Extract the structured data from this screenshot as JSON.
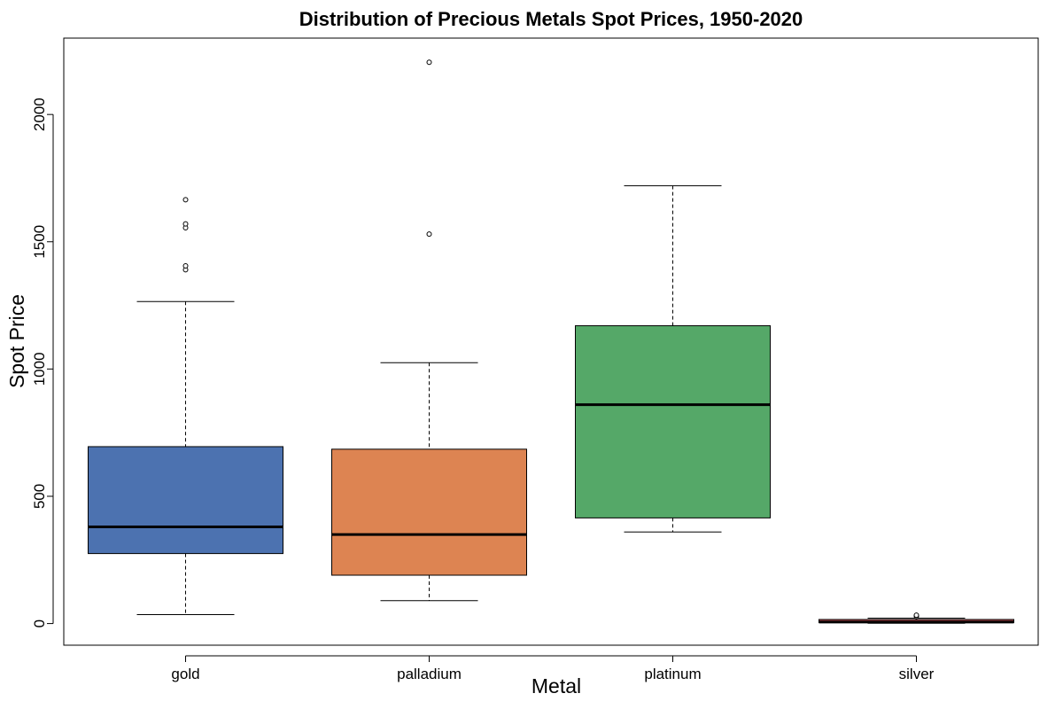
{
  "chart_data": {
    "type": "boxplot",
    "title": "Distribution of Precious Metals Spot Prices, 1950-2020",
    "xlabel": "Metal",
    "ylabel": "Spot Price",
    "ylim": [
      -85,
      2300
    ],
    "yticks": [
      0,
      500,
      1000,
      1500,
      2000
    ],
    "grid": false,
    "categories": [
      "gold",
      "palladium",
      "platinum",
      "silver"
    ],
    "colors": [
      "#4c72b0",
      "#dd8452",
      "#55a868",
      "#c44e52"
    ],
    "boxes": [
      {
        "category": "gold",
        "whisker_low": 35,
        "q1": 275,
        "median": 380,
        "q3": 695,
        "whisker_high": 1265,
        "outliers": [
          1390,
          1405,
          1555,
          1570,
          1665
        ]
      },
      {
        "category": "palladium",
        "whisker_low": 90,
        "q1": 190,
        "median": 350,
        "q3": 685,
        "whisker_high": 1025,
        "outliers": [
          1530,
          2205
        ]
      },
      {
        "category": "platinum",
        "whisker_low": 360,
        "q1": 415,
        "median": 860,
        "q3": 1170,
        "whisker_high": 1720,
        "outliers": []
      },
      {
        "category": "silver",
        "whisker_low": 1,
        "q1": 4,
        "median": 6,
        "q3": 16,
        "whisker_high": 21,
        "outliers": [
          28,
          33
        ]
      }
    ]
  }
}
